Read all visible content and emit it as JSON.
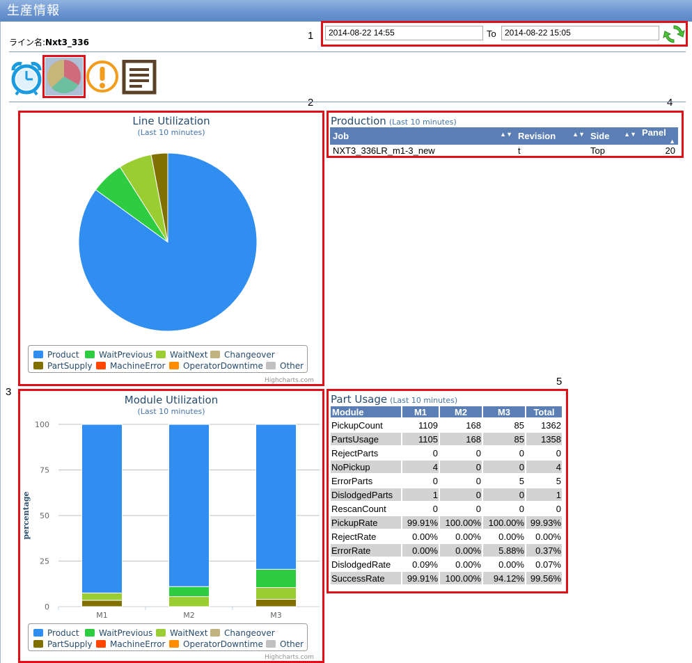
{
  "app": {
    "title": "生産情報"
  },
  "line": {
    "label": "ライン名:",
    "name": "Nxt3_336"
  },
  "date_range": {
    "from": "2014-08-22 14:55",
    "to_label": "To",
    "to": "2014-08-22 15:05"
  },
  "markers": [
    "1",
    "2",
    "3",
    "4",
    "5"
  ],
  "icons": {
    "alarm": "alarm-clock-icon",
    "pie": "pie-chart-icon",
    "warning": "warning-icon",
    "report": "report-list-icon",
    "refresh": "refresh-icon"
  },
  "colors": {
    "Product": "#2f8ef0",
    "WaitPrevious": "#2ecc40",
    "WaitNext": "#9acd32",
    "Changeover": "#c2b280",
    "PartSupply": "#807000",
    "MachineError": "#ff4500",
    "OperatorDowntime": "#ff8c00",
    "Other": "#c0c0c0"
  },
  "line_util": {
    "title": "Line Utilization",
    "subtitle": "(Last 10 minutes)",
    "credits": "Highcharts.com",
    "legend": [
      "Product",
      "WaitPrevious",
      "WaitNext",
      "Changeover",
      "PartSupply",
      "MachineError",
      "OperatorDowntime",
      "Other"
    ]
  },
  "module_util": {
    "title": "Module Utilization",
    "subtitle": "(Last 10 minutes)",
    "ylabel": "percentage",
    "credits": "Highcharts.com",
    "legend": [
      "Product",
      "WaitPrevious",
      "WaitNext",
      "Changeover",
      "PartSupply",
      "MachineError",
      "OperatorDowntime",
      "Other"
    ]
  },
  "chart_data": [
    {
      "type": "pie",
      "title": "Line Utilization",
      "subtitle": "(Last 10 minutes)",
      "labels": [
        "Product",
        "WaitPrevious",
        "WaitNext",
        "Changeover",
        "PartSupply",
        "MachineError",
        "OperatorDowntime",
        "Other"
      ],
      "values": [
        85,
        6,
        6,
        0,
        3,
        0,
        0,
        0
      ]
    },
    {
      "type": "bar",
      "stacked": true,
      "title": "Module Utilization",
      "subtitle": "(Last 10 minutes)",
      "ylabel": "percentage",
      "ylim": [
        0,
        100
      ],
      "yticks": [
        0,
        25,
        50,
        75,
        100
      ],
      "categories": [
        "M1",
        "M2",
        "M3"
      ],
      "series": [
        {
          "name": "PartSupply",
          "values": [
            3.5,
            0,
            4
          ]
        },
        {
          "name": "Changeover",
          "values": [
            0,
            0,
            0
          ]
        },
        {
          "name": "WaitNext",
          "values": [
            4,
            5.5,
            6.5
          ]
        },
        {
          "name": "WaitPrevious",
          "values": [
            0,
            5.5,
            10
          ]
        },
        {
          "name": "Product",
          "values": [
            92.5,
            89,
            79.5
          ]
        },
        {
          "name": "MachineError",
          "values": [
            0,
            0,
            0
          ]
        },
        {
          "name": "OperatorDowntime",
          "values": [
            0,
            0,
            0
          ]
        },
        {
          "name": "Other",
          "values": [
            0,
            0,
            0
          ]
        }
      ]
    }
  ],
  "production": {
    "title": "Production",
    "subtitle": "(Last 10 minutes)",
    "columns": [
      "Job",
      "Revision",
      "Side",
      "Panel"
    ],
    "rows": [
      [
        "NXT3_336LR_m1-3_new",
        "t",
        "Top",
        "20"
      ]
    ]
  },
  "part_usage": {
    "title": "Part Usage",
    "subtitle": "(Last 10 minutes)",
    "columns": [
      "Module",
      "M1",
      "M2",
      "M3",
      "Total"
    ],
    "rows": [
      [
        "PickupCount",
        "1109",
        "168",
        "85",
        "1362"
      ],
      [
        "PartsUsage",
        "1105",
        "168",
        "85",
        "1358"
      ],
      [
        "RejectParts",
        "0",
        "0",
        "0",
        "0"
      ],
      [
        "NoPickup",
        "4",
        "0",
        "0",
        "4"
      ],
      [
        "ErrorParts",
        "0",
        "0",
        "5",
        "5"
      ],
      [
        "DislodgedParts",
        "1",
        "0",
        "0",
        "1"
      ],
      [
        "RescanCount",
        "0",
        "0",
        "0",
        "0"
      ],
      [
        "PickupRate",
        "99.91%",
        "100.00%",
        "100.00%",
        "99.93%"
      ],
      [
        "RejectRate",
        "0.00%",
        "0.00%",
        "0.00%",
        "0.00%"
      ],
      [
        "ErrorRate",
        "0.00%",
        "0.00%",
        "5.88%",
        "0.37%"
      ],
      [
        "DislodgedRate",
        "0.09%",
        "0.00%",
        "0.00%",
        "0.07%"
      ],
      [
        "SuccessRate",
        "99.91%",
        "100.00%",
        "94.12%",
        "99.56%"
      ]
    ]
  }
}
